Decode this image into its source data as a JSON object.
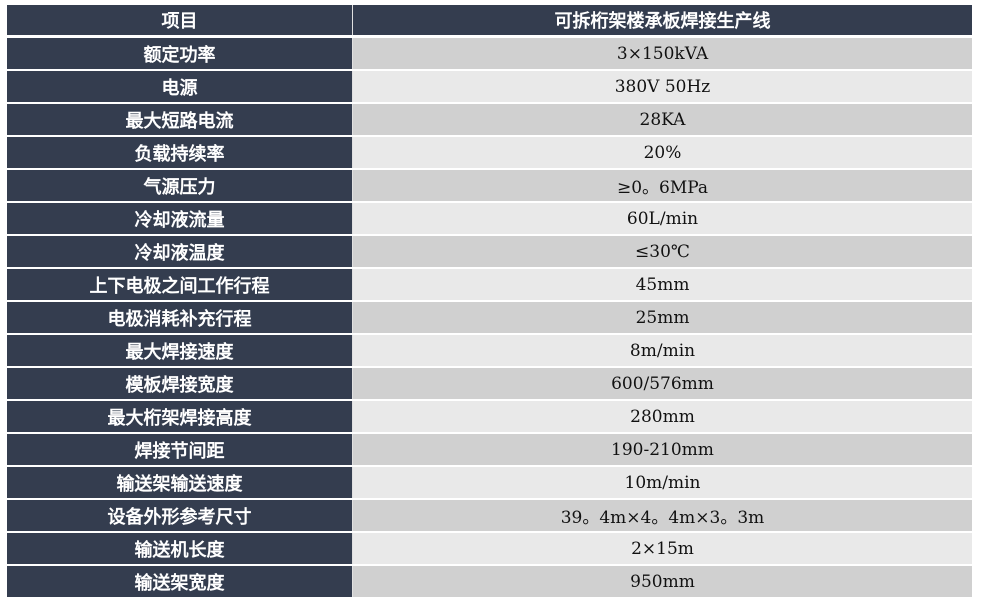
{
  "header": {
    "col1": "项目",
    "col2": "可拆桁架楼承板焊接生产线"
  },
  "rows": [
    {
      "item": "额定功率",
      "value": "3×150kVA"
    },
    {
      "item": "电源",
      "value": "380V 50Hz"
    },
    {
      "item": "最大短路电流",
      "value": "28KA"
    },
    {
      "item": "负载持续率",
      "value": "20%"
    },
    {
      "item": "气源压力",
      "value": "≥0。6MPa"
    },
    {
      "item": "冷却液流量",
      "value": "60L/min"
    },
    {
      "item": "冷却液温度",
      "value": "≤30℃"
    },
    {
      "item": "上下电极之间工作行程",
      "value": "45mm"
    },
    {
      "item": "电极消耗补充行程",
      "value": "25mm"
    },
    {
      "item": "最大焊接速度",
      "value": "8m/min"
    },
    {
      "item": "模板焊接宽度",
      "value": "600/576mm"
    },
    {
      "item": "最大桁架焊接高度",
      "value": "280mm"
    },
    {
      "item": "焊接节间距",
      "value": "190-210mm"
    },
    {
      "item": "输送架输送速度",
      "value": "10m/min"
    },
    {
      "item": "设备外形参考尺寸",
      "value": "39。4m×4。4m×3。3m"
    },
    {
      "item": "输送机长度",
      "value": "2×15m"
    },
    {
      "item": "输送架宽度",
      "value": "950mm"
    }
  ],
  "colors": {
    "header_bg": "#343d4f",
    "row_dark": "#d0d0d0",
    "row_light": "#e9e9e9"
  }
}
